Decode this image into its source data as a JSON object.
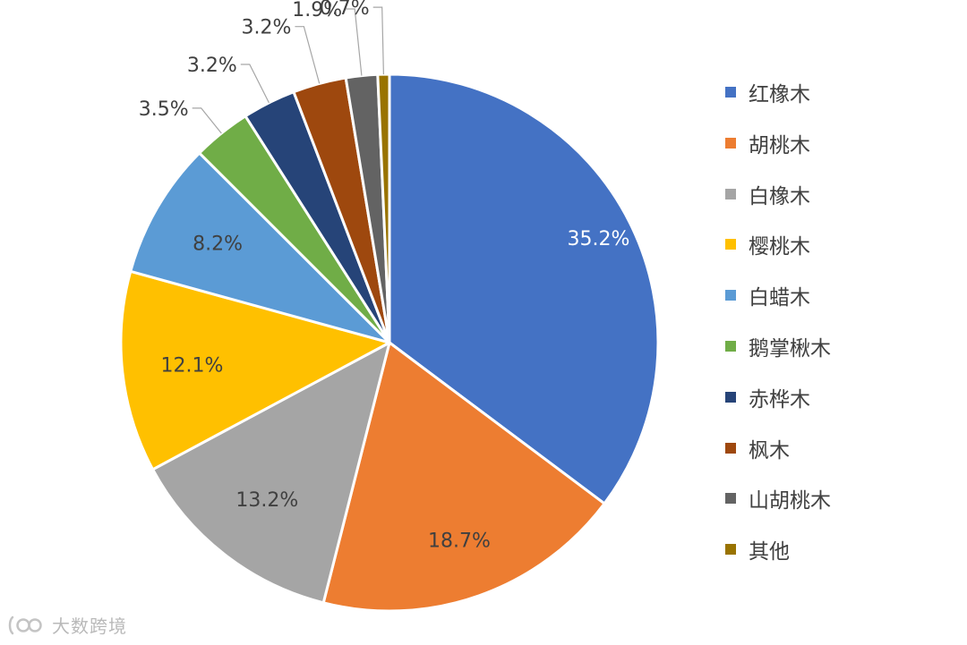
{
  "chart_data": {
    "type": "pie",
    "slices": [
      {
        "label": "红橡木",
        "value": 35.2,
        "display": "35.2%",
        "color": "#4472C4"
      },
      {
        "label": "胡桃木",
        "value": 18.7,
        "display": "18.7%",
        "color": "#ED7D31"
      },
      {
        "label": "白橡木",
        "value": 13.2,
        "display": "13.2%",
        "color": "#A5A5A5"
      },
      {
        "label": "樱桃木",
        "value": 12.1,
        "display": "12.1%",
        "color": "#FFC000"
      },
      {
        "label": "白蜡木",
        "value": 8.2,
        "display": "8.2%",
        "color": "#5B9BD5"
      },
      {
        "label": "鹅掌楸木",
        "value": 3.5,
        "display": "3.5%",
        "color": "#70AD47"
      },
      {
        "label": "赤桦木",
        "value": 3.2,
        "display": "3.2%",
        "color": "#264478"
      },
      {
        "label": "枫木",
        "value": 3.2,
        "display": "3.2%",
        "color": "#9E480E"
      },
      {
        "label": "山胡桃木",
        "value": 1.9,
        "display": "1.9%",
        "color": "#636363"
      },
      {
        "label": "其他",
        "value": 0.7,
        "display": "0.7%",
        "color": "#997300"
      }
    ],
    "start_angle": "12 o'clock",
    "direction": "clockwise",
    "legend_position": "right"
  },
  "watermark": {
    "text": "大数跨境"
  }
}
